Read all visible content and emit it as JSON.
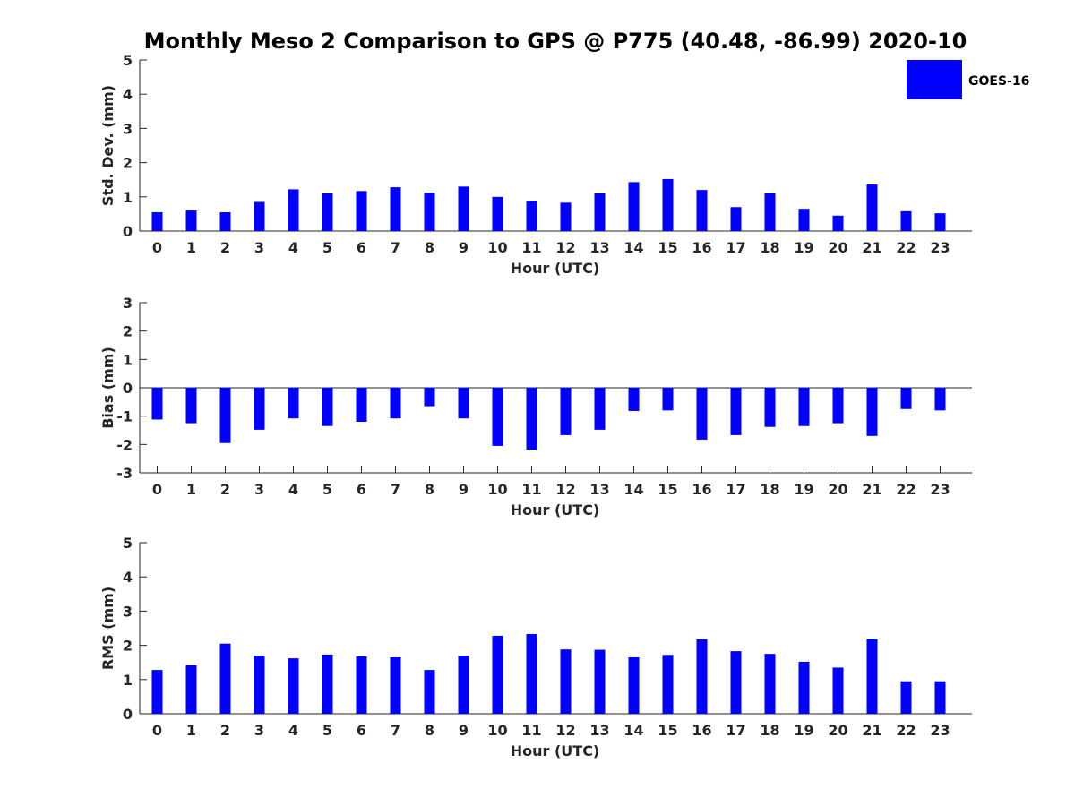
{
  "title": "Monthly Meso 2 Comparison to GPS @ P775 (40.48, -86.99) 2020-10",
  "legend": {
    "label": "GOES-16",
    "color": "#0000ff",
    "placement": "top-right"
  },
  "chart_data": [
    {
      "type": "bar",
      "xlabel": "Hour (UTC)",
      "ylabel": "Std. Dev. (mm)",
      "ylim": [
        0,
        5
      ],
      "yticks": [
        "0",
        "1",
        "2",
        "3",
        "4",
        "5"
      ],
      "categories": [
        "0",
        "1",
        "2",
        "3",
        "4",
        "5",
        "6",
        "7",
        "8",
        "9",
        "10",
        "11",
        "12",
        "13",
        "14",
        "15",
        "16",
        "17",
        "18",
        "19",
        "20",
        "21",
        "22",
        "23"
      ],
      "series": [
        {
          "name": "GOES-16",
          "values": [
            0.55,
            0.6,
            0.55,
            0.85,
            1.22,
            1.1,
            1.17,
            1.28,
            1.12,
            1.3,
            1.0,
            0.88,
            0.83,
            1.1,
            1.43,
            1.52,
            1.2,
            0.7,
            1.1,
            0.65,
            0.45,
            1.36,
            0.58,
            0.52
          ]
        }
      ]
    },
    {
      "type": "bar",
      "xlabel": "Hour (UTC)",
      "ylabel": "Bias (mm)",
      "ylim": [
        -3,
        3
      ],
      "yticks": [
        "-3",
        "-2",
        "-1",
        "0",
        "1",
        "2",
        "3"
      ],
      "categories": [
        "0",
        "1",
        "2",
        "3",
        "4",
        "5",
        "6",
        "7",
        "8",
        "9",
        "10",
        "11",
        "12",
        "13",
        "14",
        "15",
        "16",
        "17",
        "18",
        "19",
        "20",
        "21",
        "22",
        "23"
      ],
      "series": [
        {
          "name": "GOES-16",
          "values": [
            -1.12,
            -1.25,
            -1.95,
            -1.48,
            -1.08,
            -1.35,
            -1.2,
            -1.08,
            -0.65,
            -1.08,
            -2.05,
            -2.18,
            -1.67,
            -1.48,
            -0.82,
            -0.8,
            -1.83,
            -1.67,
            -1.38,
            -1.35,
            -1.25,
            -1.7,
            -0.75,
            -0.8
          ]
        }
      ]
    },
    {
      "type": "bar",
      "xlabel": "Hour (UTC)",
      "ylabel": "RMS (mm)",
      "ylim": [
        0,
        5
      ],
      "yticks": [
        "0",
        "1",
        "2",
        "3",
        "4",
        "5"
      ],
      "categories": [
        "0",
        "1",
        "2",
        "3",
        "4",
        "5",
        "6",
        "7",
        "8",
        "9",
        "10",
        "11",
        "12",
        "13",
        "14",
        "15",
        "16",
        "17",
        "18",
        "19",
        "20",
        "21",
        "22",
        "23"
      ],
      "series": [
        {
          "name": "GOES-16",
          "values": [
            1.28,
            1.42,
            2.05,
            1.7,
            1.62,
            1.73,
            1.68,
            1.65,
            1.28,
            1.7,
            2.28,
            2.33,
            1.88,
            1.87,
            1.65,
            1.72,
            2.18,
            1.83,
            1.75,
            1.52,
            1.35,
            2.18,
            0.95,
            0.95
          ]
        }
      ]
    }
  ]
}
